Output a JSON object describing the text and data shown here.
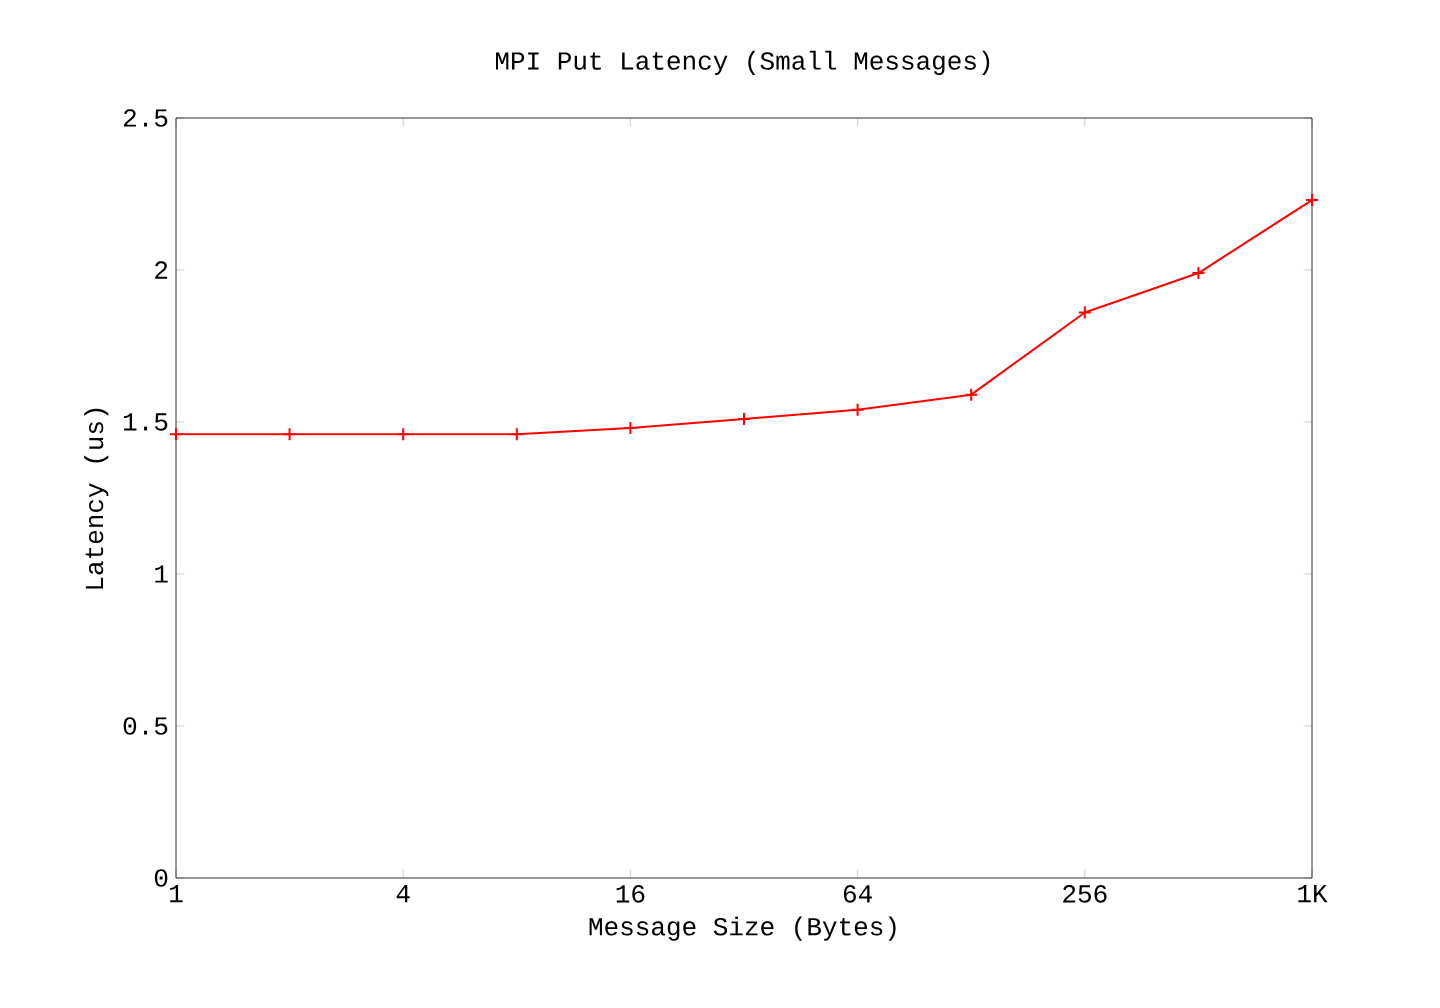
{
  "chart_data": {
    "type": "line",
    "title": "MPI Put Latency (Small Messages)",
    "xlabel": "Message Size (Bytes)",
    "ylabel": "Latency (us)",
    "x": [
      1,
      2,
      4,
      8,
      16,
      32,
      64,
      128,
      256,
      512,
      1024
    ],
    "series": [
      {
        "color": "#ff0000",
        "values": [
          1.46,
          1.46,
          1.46,
          1.46,
          1.48,
          1.51,
          1.54,
          1.59,
          1.86,
          1.99,
          2.23
        ]
      }
    ],
    "log": "x",
    "xlim": [
      1,
      1024
    ],
    "ylim": [
      0,
      2.5
    ],
    "xticks": [
      1,
      4,
      16,
      64,
      256,
      {
        "value": 1024,
        "label": "1K"
      }
    ],
    "yticks": [
      0,
      0.5,
      1,
      1.5,
      2,
      2.5
    ],
    "marker": "cross",
    "line_style": "solid",
    "grid": false
  }
}
